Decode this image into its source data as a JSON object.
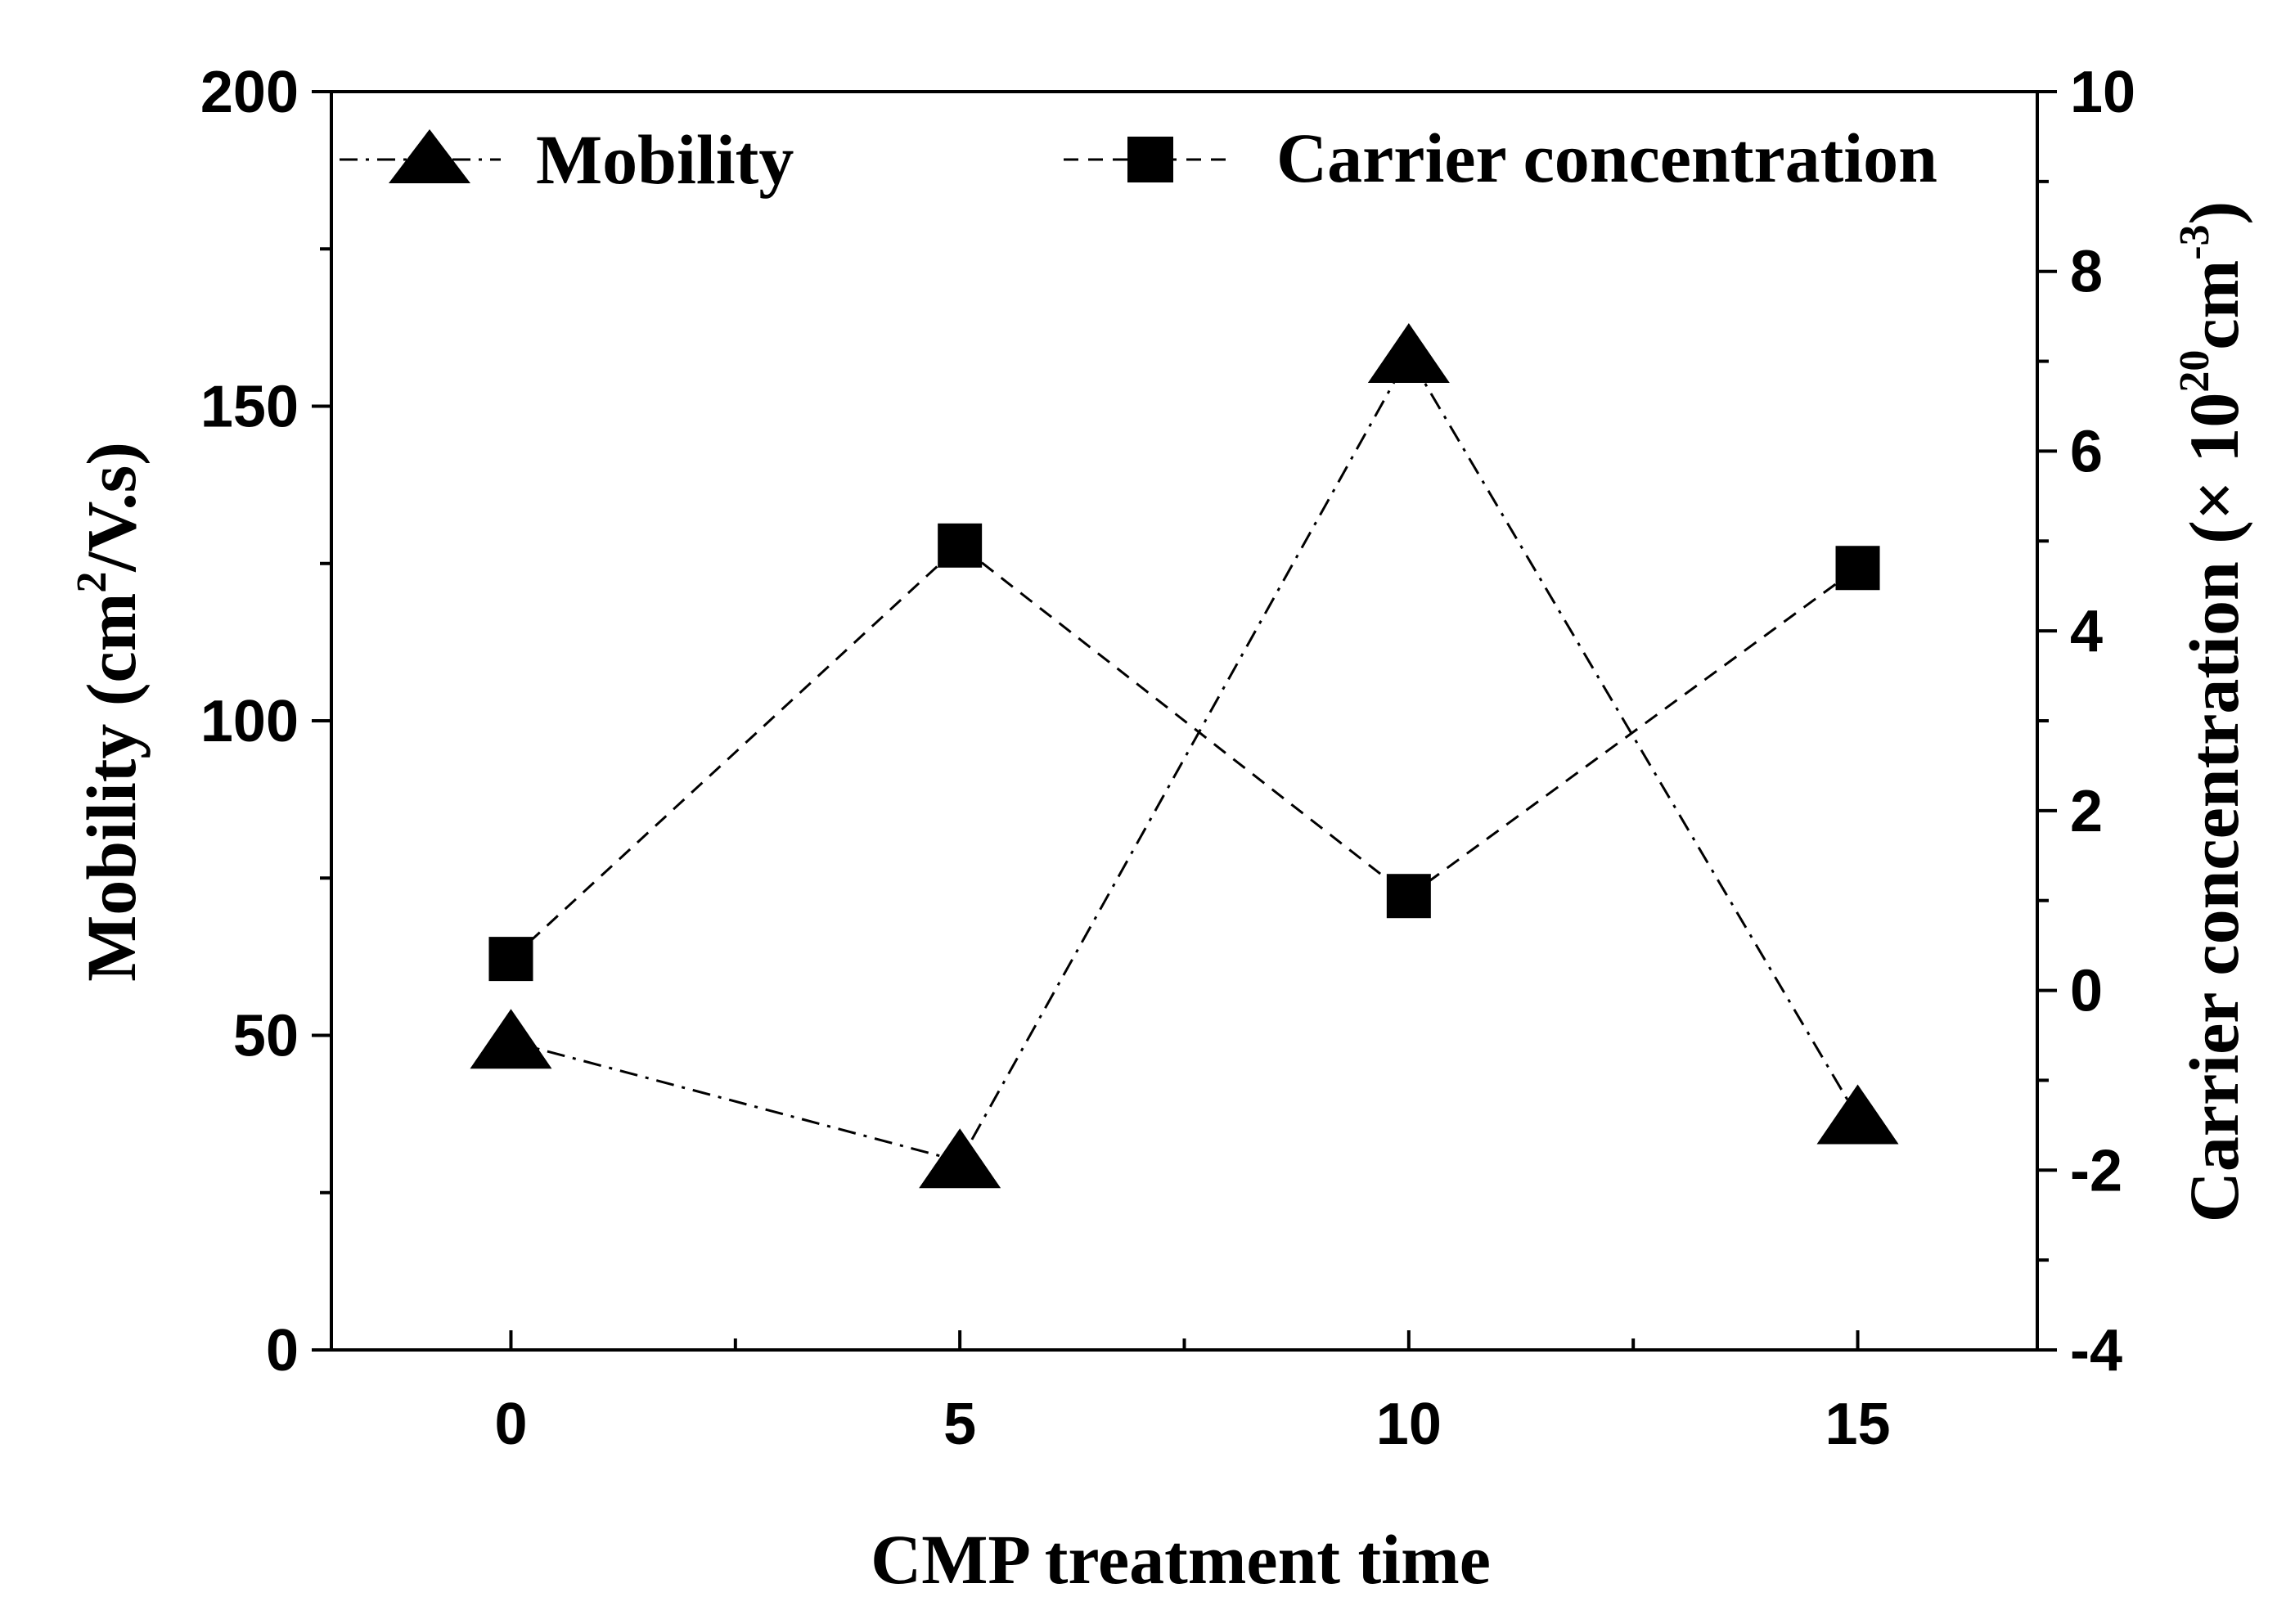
{
  "chart_data": {
    "type": "line",
    "xlabel": "CMP treatment time",
    "ylabel": {
      "prefix": "Mobility (cm",
      "sup": "2",
      "suffix": "/V.s)"
    },
    "y2label": {
      "prefix": "Carrier concentration (× 10",
      "sup1": "20",
      "mid": "cm",
      "sup2": "-3",
      "suffix": ")"
    },
    "x": [
      0,
      5,
      10,
      15
    ],
    "xlim": [
      -2,
      17
    ],
    "xticks": [
      0,
      5,
      10,
      15
    ],
    "xminor": [
      2.5,
      7.5,
      12.5
    ],
    "ylim": [
      0,
      200
    ],
    "yticks": [
      0,
      50,
      100,
      150,
      200
    ],
    "yminor": [
      25,
      75,
      125,
      175
    ],
    "y2lim": [
      -4,
      10
    ],
    "y2ticks": [
      -4,
      -2,
      0,
      2,
      4,
      6,
      8,
      10
    ],
    "y2minor": [
      -3,
      -1,
      1,
      3,
      5,
      7,
      9
    ],
    "series": [
      {
        "name": "Mobility",
        "axis": "left",
        "marker": "triangle",
        "values": [
          49,
          30,
          158,
          37
        ]
      },
      {
        "name": "Carrier concentration",
        "axis": "right",
        "marker": "square",
        "values": [
          0.35,
          4.95,
          1.05,
          4.7
        ]
      }
    ],
    "legend": "top",
    "grid": false
  }
}
